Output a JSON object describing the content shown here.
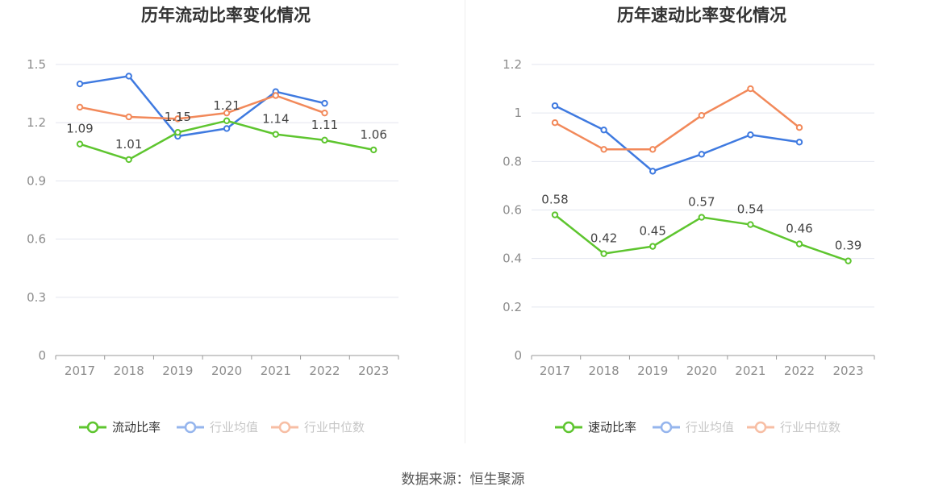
{
  "source": "数据来源：恒生聚源",
  "colors": {
    "main": "#5ec52f",
    "avg": "#3f7ae0",
    "median": "#f2895a",
    "grid": "#e3e6ef",
    "axis": "#999999",
    "tick": "#8c8c8c"
  },
  "chart_data": [
    {
      "type": "line",
      "title": "历年流动比率变化情况",
      "categories": [
        "2017",
        "2018",
        "2019",
        "2020",
        "2021",
        "2022",
        "2023"
      ],
      "ylim": [
        0,
        1.5
      ],
      "yticks": [
        "0",
        "0.3",
        "0.6",
        "0.9",
        "1.2",
        "1.5"
      ],
      "grid": true,
      "legend": "bottom",
      "series": [
        {
          "name": "流动比率",
          "color": "#5ec52f",
          "values": [
            1.09,
            1.01,
            1.15,
            1.21,
            1.14,
            1.11,
            1.06
          ],
          "labels": [
            "1.09",
            "1.01",
            "1.15",
            "1.21",
            "1.14",
            "1.11",
            "1.06"
          ]
        },
        {
          "name": "行业均值",
          "color": "#3f7ae0",
          "values": [
            1.4,
            1.44,
            1.13,
            1.17,
            1.36,
            1.3,
            null
          ]
        },
        {
          "name": "行业中位数",
          "color": "#f2895a",
          "values": [
            1.28,
            1.23,
            1.22,
            1.25,
            1.34,
            1.25,
            null
          ]
        }
      ]
    },
    {
      "type": "line",
      "title": "历年速动比率变化情况",
      "categories": [
        "2017",
        "2018",
        "2019",
        "2020",
        "2021",
        "2022",
        "2023"
      ],
      "ylim": [
        0,
        1.2
      ],
      "yticks": [
        "0",
        "0.2",
        "0.4",
        "0.6",
        "0.8",
        "1",
        "1.2"
      ],
      "grid": true,
      "legend": "bottom",
      "series": [
        {
          "name": "速动比率",
          "color": "#5ec52f",
          "values": [
            0.58,
            0.42,
            0.45,
            0.57,
            0.54,
            0.46,
            0.39
          ],
          "labels": [
            "0.58",
            "0.42",
            "0.45",
            "0.57",
            "0.54",
            "0.46",
            "0.39"
          ]
        },
        {
          "name": "行业均值",
          "color": "#3f7ae0",
          "values": [
            1.03,
            0.93,
            0.76,
            0.83,
            0.91,
            0.88,
            null
          ]
        },
        {
          "name": "行业中位数",
          "color": "#f2895a",
          "values": [
            0.96,
            0.85,
            0.85,
            0.99,
            1.1,
            0.94,
            null
          ]
        }
      ]
    }
  ]
}
